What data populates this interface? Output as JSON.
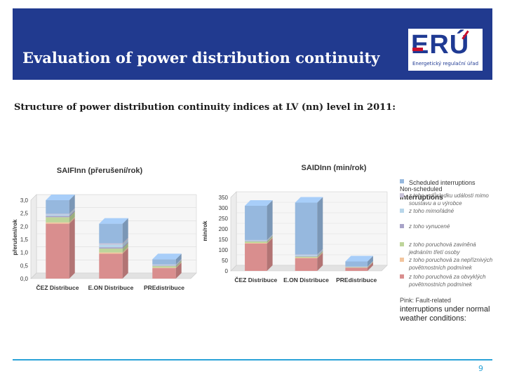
{
  "header": {
    "title": "Evaluation of power distribution continuity"
  },
  "logo": {
    "letters": "ERÚ",
    "caption": "Energetický regulační úřad"
  },
  "subtitle": "Structure of power distribution continuity indices at LV (nn) level in 2011:",
  "chart_data": [
    {
      "type": "bar",
      "stacked": true,
      "title": "SAIFInn (přerušení/rok)",
      "ylabel": "přerušení/rok",
      "ylim": [
        0,
        3.0
      ],
      "yticks": [
        "0,0",
        "0,5",
        "1,0",
        "1,5",
        "2,0",
        "2,5",
        "3,0"
      ],
      "categories": [
        "ČEZ Distribuce",
        "E.ON Distribuce",
        "PREdistribuce"
      ],
      "series": [
        {
          "name": "z toho poruchová za obvyklých povětrnostních podmínek",
          "color": "#d98e8e",
          "values": [
            2.1,
            0.95,
            0.4
          ]
        },
        {
          "name": "z toho poruchová za nepříznivých povětrnostních podmínek",
          "color": "#f2c59e",
          "values": [
            0.05,
            0.05,
            0.02
          ]
        },
        {
          "name": "z toho poruchová zaviněná jednáním třetí osoby",
          "color": "#bdd49a",
          "values": [
            0.2,
            0.15,
            0.06
          ]
        },
        {
          "name": "z toho vynucené",
          "color": "#a8a3c8",
          "values": [
            0.05,
            0.05,
            0.02
          ]
        },
        {
          "name": "z toho mimořádné",
          "color": "#b8d6ea",
          "values": [
            0.05,
            0.1,
            0.02
          ]
        },
        {
          "name": "z toho v důsledku události mimo soustavu a u výrobce",
          "color": "#c9c3d9",
          "values": [
            0.03,
            0.05,
            0.02
          ]
        },
        {
          "name": "Scheduled interruptions",
          "color": "#96b8de",
          "values": [
            0.52,
            0.75,
            0.2
          ]
        }
      ]
    },
    {
      "type": "bar",
      "stacked": true,
      "title": "SAIDInn (min/rok)",
      "ylabel": "min/rok",
      "ylim": [
        0,
        350
      ],
      "yticks": [
        "0",
        "50",
        "100",
        "150",
        "200",
        "250",
        "300",
        "350"
      ],
      "categories": [
        "ČEZ Distribuce",
        "E.ON Distribuce",
        "PREdistribuce"
      ],
      "series": [
        {
          "name": "z toho poruchová za obvyklých povětrnostních podmínek",
          "color": "#d98e8e",
          "values": [
            130,
            60,
            15
          ]
        },
        {
          "name": "z toho poruchová za nepříznivých povětrnostních podmínek",
          "color": "#f2c59e",
          "values": [
            3,
            3,
            1
          ]
        },
        {
          "name": "z toho poruchová zaviněná jednáním třetí osoby",
          "color": "#bdd49a",
          "values": [
            7,
            5,
            2
          ]
        },
        {
          "name": "z toho vynucené",
          "color": "#a8a3c8",
          "values": [
            2,
            2,
            1
          ]
        },
        {
          "name": "z toho mimořádné",
          "color": "#b8d6ea",
          "values": [
            3,
            5,
            1
          ]
        },
        {
          "name": "z toho v důsledku události mimo soustavu a u výrobce",
          "color": "#c9c3d9",
          "values": [
            2,
            3,
            1
          ]
        },
        {
          "name": "Scheduled interruptions",
          "color": "#96b8de",
          "values": [
            163,
            247,
            24
          ]
        }
      ]
    }
  ],
  "legend": {
    "scheduled": "Scheduled interruptions",
    "nonscheduled_line1": "Non-scheduled",
    "nonscheduled_line2": "interruptions",
    "items": [
      {
        "lines": [
          "z toho v důsledku události mimo",
          "soustavu a u výrobce"
        ],
        "color": "#c9c3d9"
      },
      {
        "lines": [
          "z toho mimořádné"
        ],
        "color": "#b8d6ea"
      },
      {
        "lines": [
          "z toho vynucené"
        ],
        "color": "#a8a3c8"
      },
      {
        "lines": [
          "z toho poruchová zaviněná",
          "jednáním třetí osoby"
        ],
        "color": "#bdd49a"
      },
      {
        "lines": [
          "z toho poruchová za nepříznivých",
          "povětrnostních podmínek"
        ],
        "color": "#f2c59e"
      },
      {
        "lines": [
          "z toho poruchová za obvyklých",
          "povětrnostních podmínek"
        ],
        "color": "#d98e8e"
      }
    ]
  },
  "note": {
    "line1": "Pink: Fault-related",
    "line2": "interruptions under normal",
    "line3": "weather conditions:"
  },
  "footer": {
    "page": "9"
  }
}
